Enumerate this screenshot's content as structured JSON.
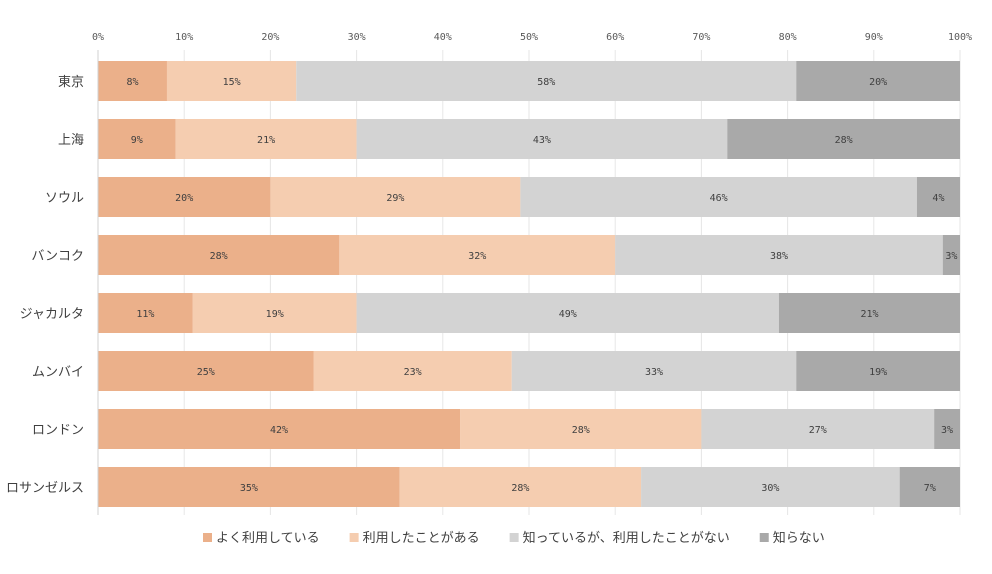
{
  "chart_data": {
    "type": "bar",
    "orientation": "horizontal",
    "stacked": true,
    "title": "",
    "xlabel": "",
    "ylabel": "",
    "xlim": [
      0,
      100
    ],
    "x_ticks": [
      "0%",
      "10%",
      "20%",
      "30%",
      "40%",
      "50%",
      "60%",
      "70%",
      "80%",
      "90%",
      "100%"
    ],
    "categories": [
      "東京",
      "上海",
      "ソウル",
      "バンコク",
      "ジャカルタ",
      "ムンバイ",
      "ロンドン",
      "ロサンゼルス"
    ],
    "legend_position": "bottom",
    "series": [
      {
        "name": "よく利用している",
        "color": "#EBB08A",
        "values": [
          8,
          9,
          20,
          28,
          11,
          25,
          42,
          35
        ]
      },
      {
        "name": "利用したことがある",
        "color": "#F5CDB0",
        "values": [
          15,
          21,
          29,
          32,
          19,
          23,
          28,
          28
        ]
      },
      {
        "name": "知っているが、利用したことがない",
        "color": "#D3D3D3",
        "values": [
          58,
          43,
          46,
          38,
          49,
          33,
          27,
          30
        ]
      },
      {
        "name": "知らない",
        "color": "#A9A9A9",
        "values": [
          20,
          28,
          4,
          3,
          21,
          19,
          3,
          7
        ]
      }
    ]
  }
}
